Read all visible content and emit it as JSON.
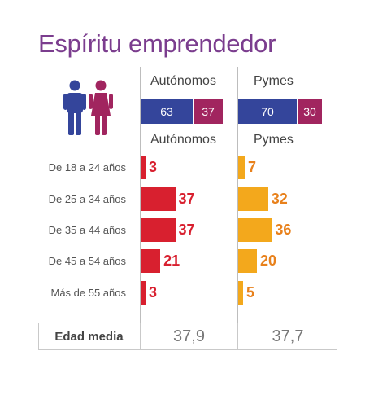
{
  "title": "Espíritu emprendedor",
  "colors": {
    "title": "#7b3d8e",
    "men": "#34459b",
    "women": "#a1255f",
    "autonomos": "#d8202f",
    "pymes": "#f3a81c",
    "pymes_text": "#e8811c"
  },
  "gender": {
    "header_autonomos": "Autónomos",
    "header_pymes": "Pymes",
    "autonomos_men": "63",
    "autonomos_women": "37",
    "pymes_men": "70",
    "pymes_women": "30"
  },
  "age_header_autonomos": "Autónomos",
  "age_header_pymes": "Pymes",
  "summary": {
    "label": "Edad media",
    "autonomos": "37,9",
    "pymes": "37,7"
  },
  "chart_data": [
    {
      "type": "bar",
      "categories": [
        "Autónomos",
        "Pymes"
      ],
      "series": [
        {
          "values": [
            63,
            70
          ]
        },
        {
          "values": [
            37,
            30
          ]
        }
      ],
      "stacked": true
    },
    {
      "type": "bar",
      "orientation": "horizontal",
      "categories": [
        "De 18 a 24 años",
        "De 25 a 34 años",
        "De 35 a 44 años",
        "De 45 a 54 años",
        "Más de 55 años"
      ],
      "series": [
        {
          "name": "Autónomos",
          "values": [
            3,
            37,
            37,
            21,
            3
          ]
        },
        {
          "name": "Pymes",
          "values": [
            7,
            32,
            36,
            20,
            5
          ]
        }
      ]
    }
  ]
}
